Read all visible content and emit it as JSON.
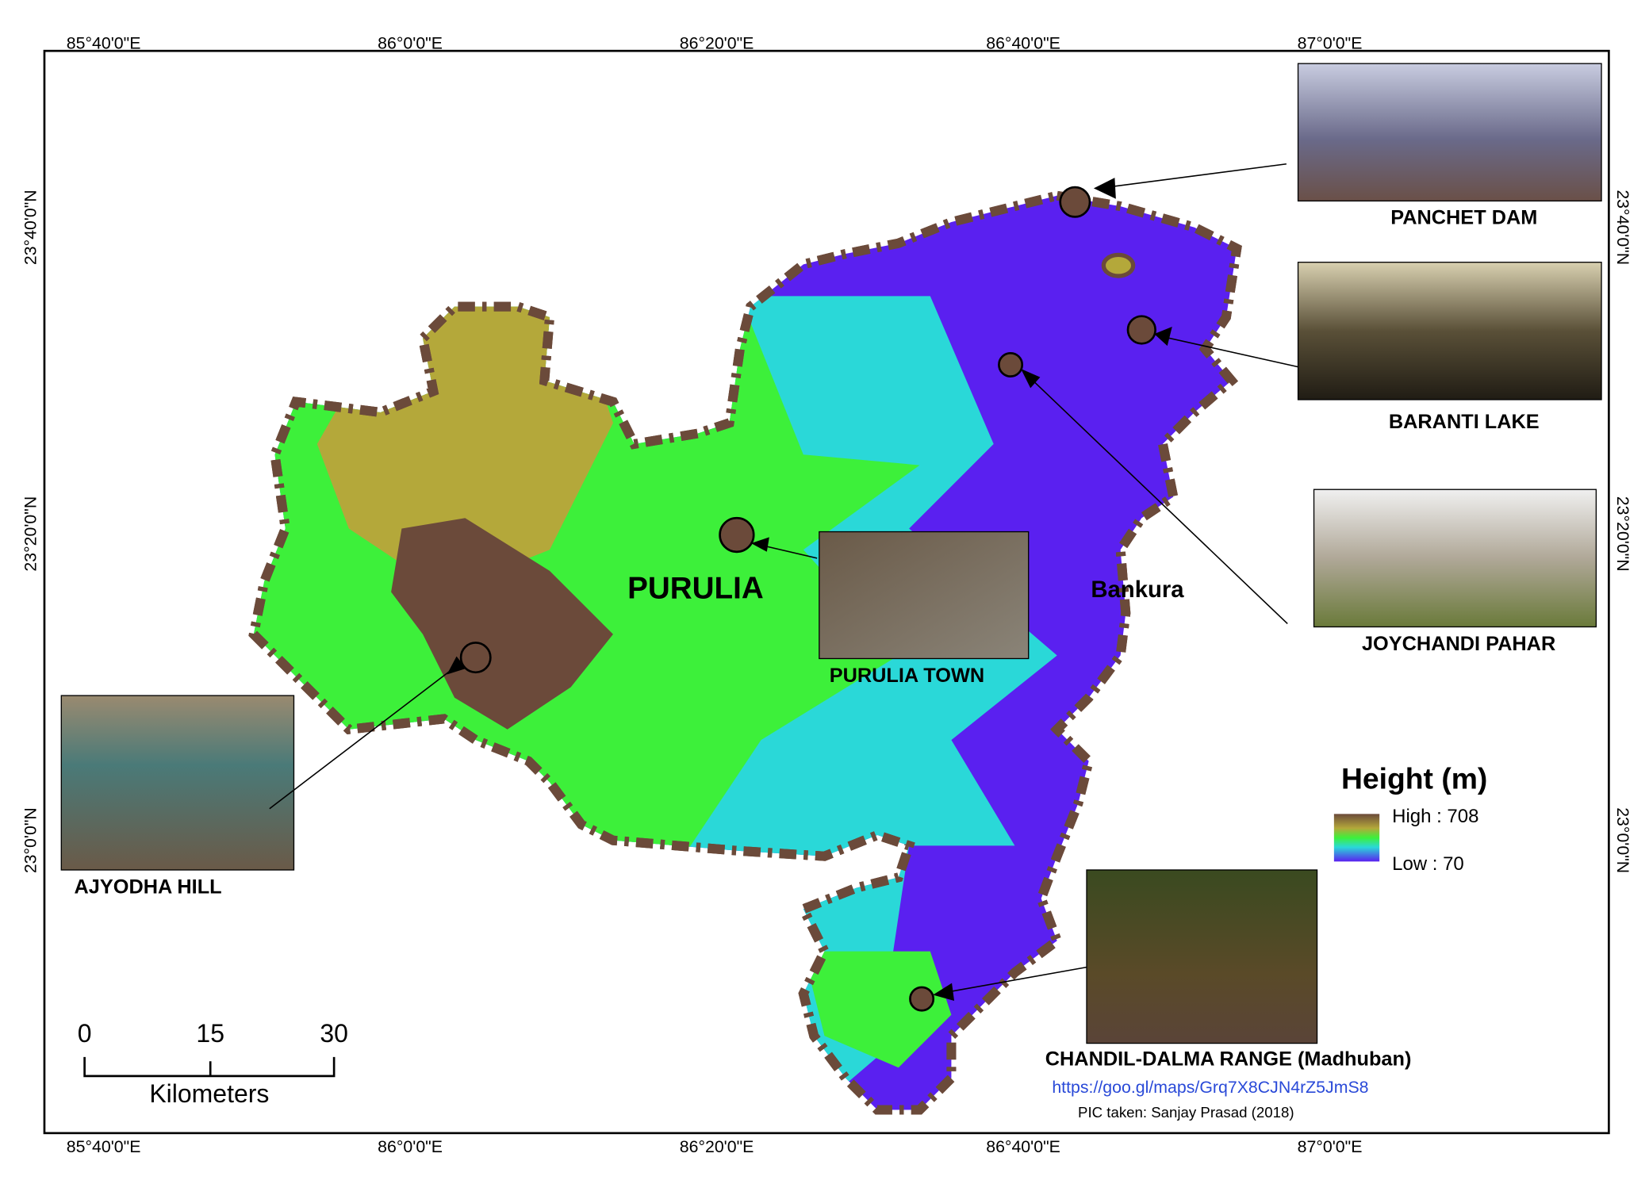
{
  "graticule": {
    "top": [
      "85°40'0\"E",
      "86°0'0\"E",
      "86°20'0\"E",
      "86°40'0\"E",
      "87°0'0\"E"
    ],
    "bottom": [
      "85°40'0\"E",
      "86°0'0\"E",
      "86°20'0\"E",
      "86°40'0\"E",
      "87°0'0\"E"
    ],
    "left": [
      "23°40'0\"N",
      "23°20'0\"N",
      "23°0'0\"N"
    ],
    "right": [
      "23°40'0\"N",
      "23°20'0\"N",
      "23°0'0\"N"
    ]
  },
  "places": {
    "district": "PURULIA",
    "neighbour": "Bankura"
  },
  "photos": [
    {
      "caption": "PANCHET DAM"
    },
    {
      "caption": "BARANTI LAKE"
    },
    {
      "caption": "JOYCHANDI PAHAR"
    },
    {
      "caption": "PURULIA TOWN"
    },
    {
      "caption": "AJYODHA HILL"
    },
    {
      "caption": "CHANDIL-DALMA RANGE (Madhuban)"
    }
  ],
  "legend": {
    "title": "Height (m)",
    "high": "High : 708",
    "low": "Low : 70"
  },
  "scale_bar": {
    "ticks": [
      "0",
      "15",
      "30"
    ],
    "unit": "Kilometers"
  },
  "url": "https://goo.gl/maps/Grq7X8CJN4rZ5JmS8",
  "credit": "PIC taken: Sanjay Prasad (2018)"
}
